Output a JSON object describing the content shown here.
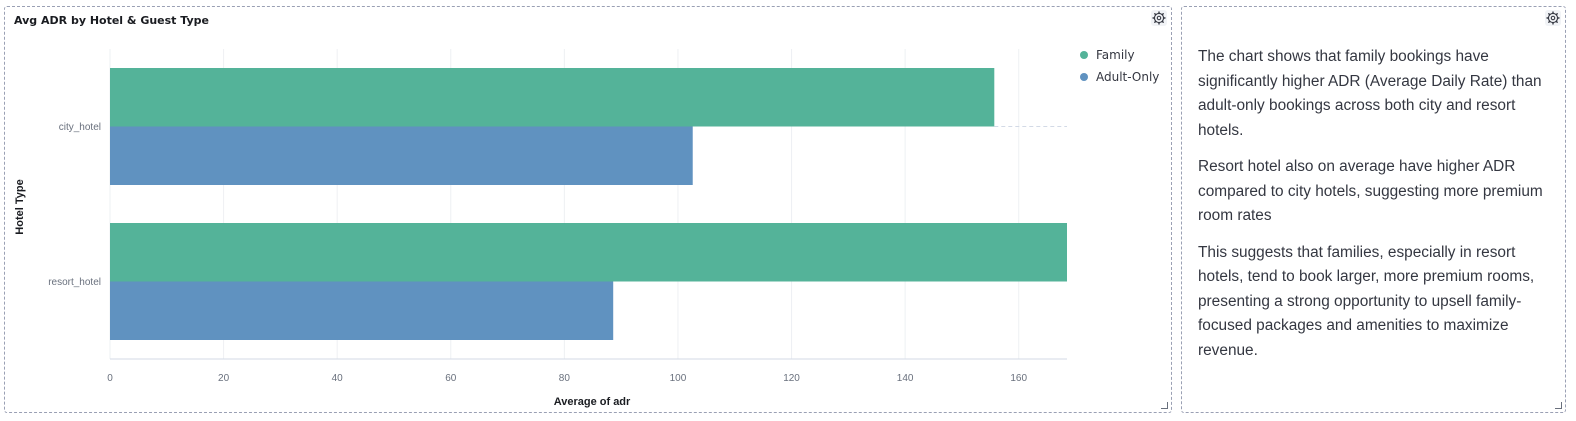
{
  "chart_panel": {
    "title": "Avg ADR by Hotel & Guest Type",
    "settings_icon": "gear-icon"
  },
  "chart_data": {
    "type": "bar",
    "orientation": "horizontal",
    "categories": [
      "city_hotel",
      "resort_hotel"
    ],
    "series": [
      {
        "name": "Family",
        "color": "#54b399",
        "values": [
          155.7,
          168.5
        ]
      },
      {
        "name": "Adult-Only",
        "color": "#6092c0",
        "values": [
          102.6,
          88.6
        ]
      }
    ],
    "xlabel": "Average of adr",
    "ylabel": "Hotel Type",
    "xlim": [
      0,
      168.5
    ],
    "xticks": [
      "0",
      "20",
      "40",
      "60",
      "80",
      "100",
      "120",
      "140",
      "160"
    ],
    "legend_position": "top-right",
    "grid": true
  },
  "text_panel": {
    "settings_icon": "gear-icon",
    "paragraphs": [
      "The chart shows that family bookings have significantly higher ADR (Average Daily Rate) than adult-only bookings across both city and resort hotels.",
      "Resort hotel also on average have higher ADR compared to city hotels, suggesting more premium room rates",
      "This suggests that families, especially in resort hotels, tend to book larger, more premium rooms, presenting a strong opportunity to upsell family-focused packages and amenities to maximize revenue."
    ]
  }
}
